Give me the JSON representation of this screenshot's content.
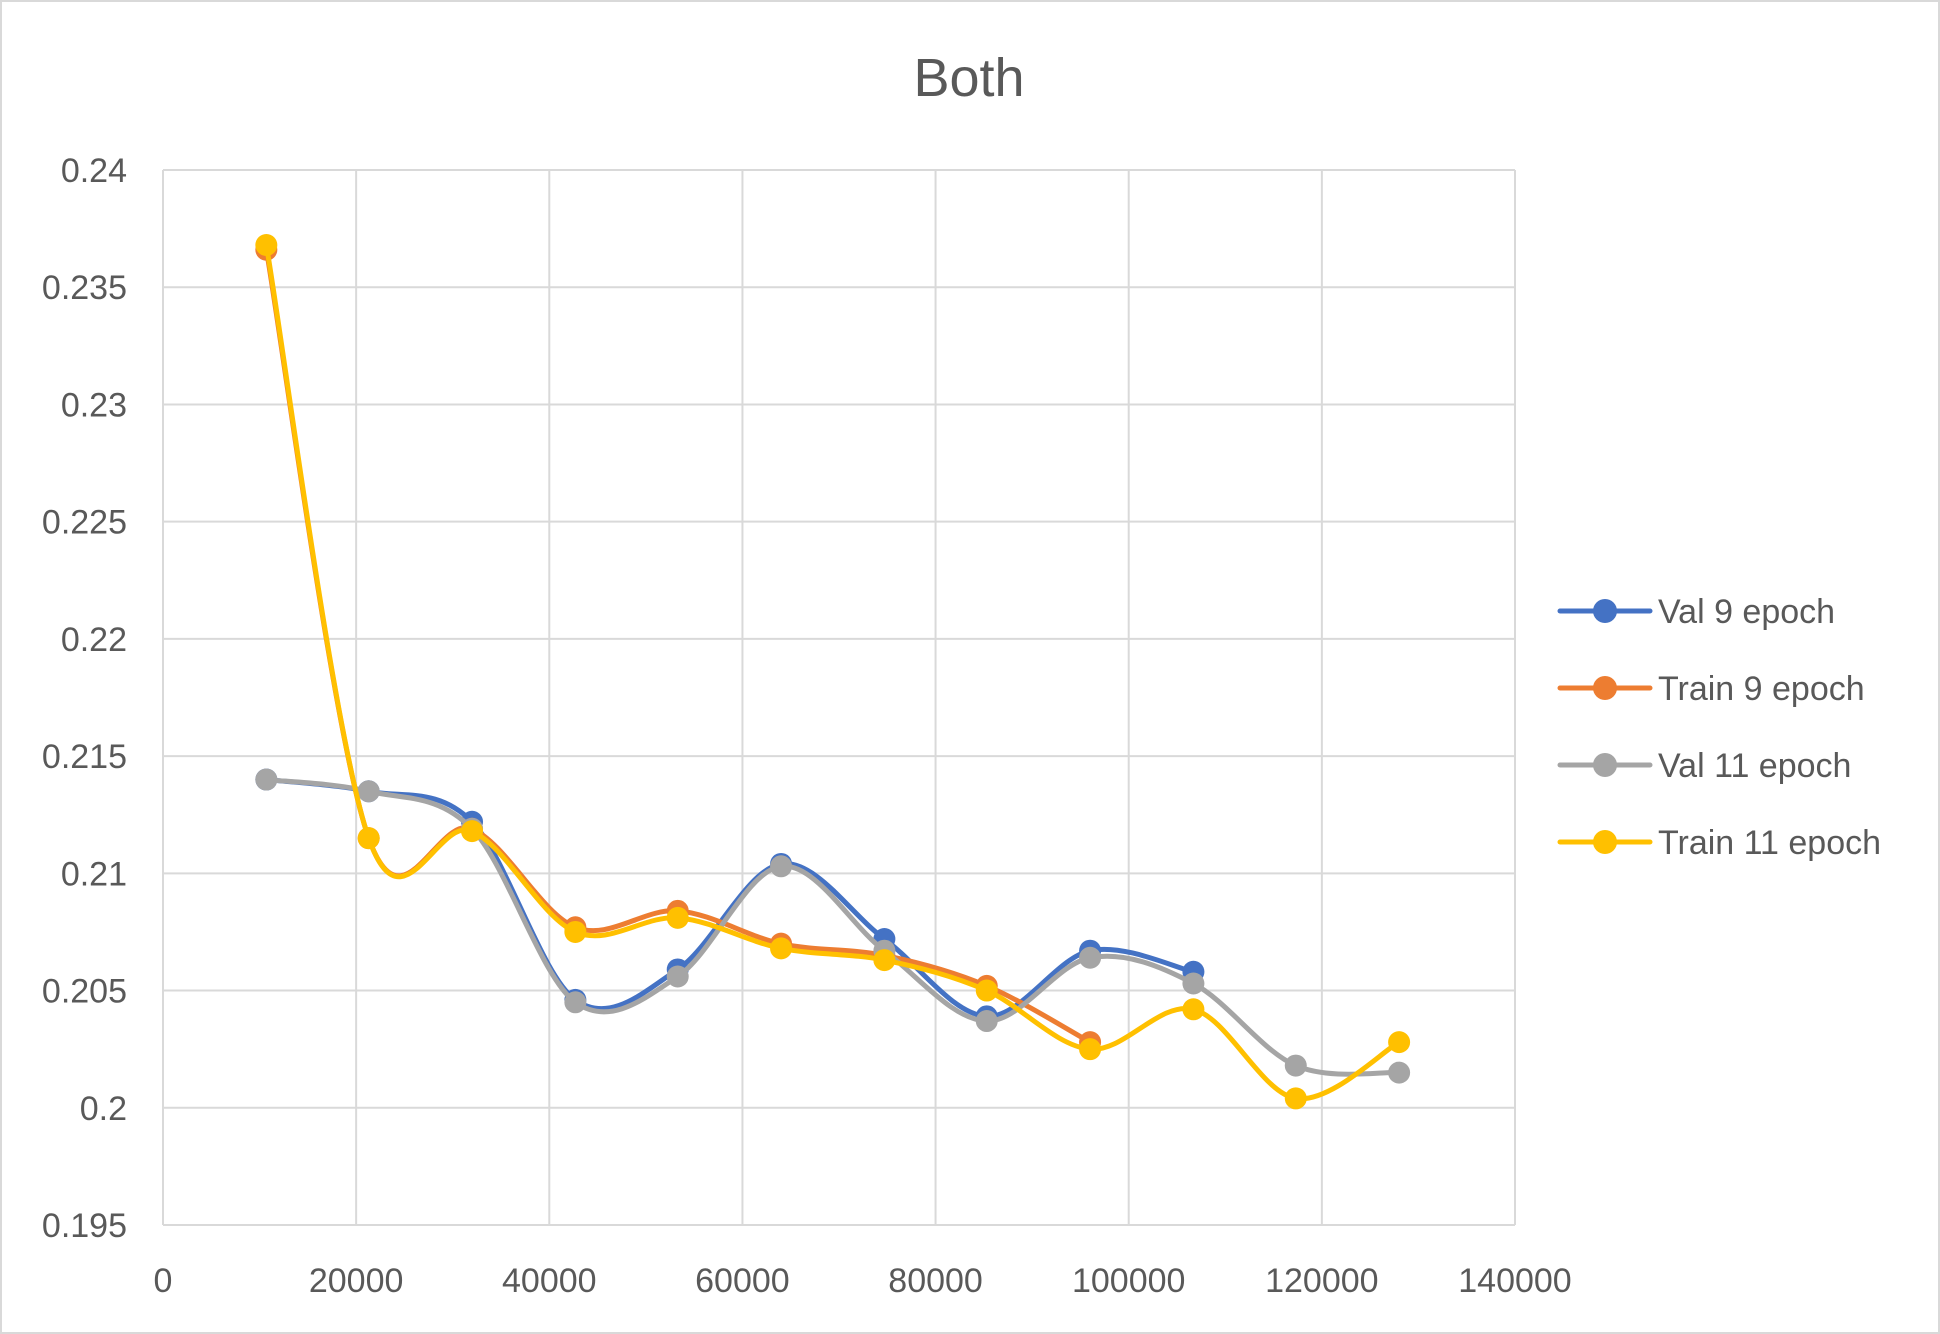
{
  "chart_data": {
    "type": "line",
    "title": "Both",
    "xlabel": "",
    "ylabel": "",
    "xlim": [
      0,
      140000
    ],
    "ylim": [
      0.195,
      0.24
    ],
    "x_ticks": [
      "0",
      "20000",
      "40000",
      "60000",
      "80000",
      "100000",
      "120000",
      "140000"
    ],
    "y_ticks": [
      "0.195",
      "0.2",
      "0.205",
      "0.21",
      "0.215",
      "0.22",
      "0.225",
      "0.23",
      "0.235",
      "0.24"
    ],
    "grid": true,
    "legend_position": "right",
    "smooth": true,
    "series": [
      {
        "name": "Val 9 epoch",
        "color": "#4472C4",
        "x": [
          10700,
          21300,
          32000,
          42700,
          53300,
          64000,
          74700,
          85300,
          96000,
          106700
        ],
        "y": [
          0.214,
          0.2135,
          0.2122,
          0.2046,
          0.2059,
          0.2104,
          0.2072,
          0.2039,
          0.2067,
          0.2058
        ]
      },
      {
        "name": "Train 9 epoch",
        "color": "#ED7D31",
        "x": [
          10700,
          21300,
          32000,
          42700,
          53300,
          64000,
          74700,
          85300,
          96000
        ],
        "y": [
          0.2366,
          0.2115,
          0.2119,
          0.2077,
          0.2084,
          0.207,
          0.2065,
          0.2052,
          0.2028
        ]
      },
      {
        "name": "Val 11 epoch",
        "color": "#A5A5A5",
        "x": [
          10700,
          21300,
          32000,
          42700,
          53300,
          64000,
          74700,
          85300,
          96000,
          106700,
          117300,
          128000
        ],
        "y": [
          0.214,
          0.2135,
          0.2119,
          0.2045,
          0.2056,
          0.2103,
          0.2067,
          0.2037,
          0.2064,
          0.2053,
          0.2018,
          0.2015
        ]
      },
      {
        "name": "Train 11 epoch",
        "color": "#FFC000",
        "x": [
          10700,
          21300,
          32000,
          42700,
          53300,
          64000,
          74700,
          85300,
          96000,
          106700,
          117300,
          128000
        ],
        "y": [
          0.2368,
          0.2115,
          0.2118,
          0.2075,
          0.2081,
          0.2068,
          0.2063,
          0.205,
          0.2025,
          0.2042,
          0.2004,
          0.2028
        ]
      }
    ]
  }
}
